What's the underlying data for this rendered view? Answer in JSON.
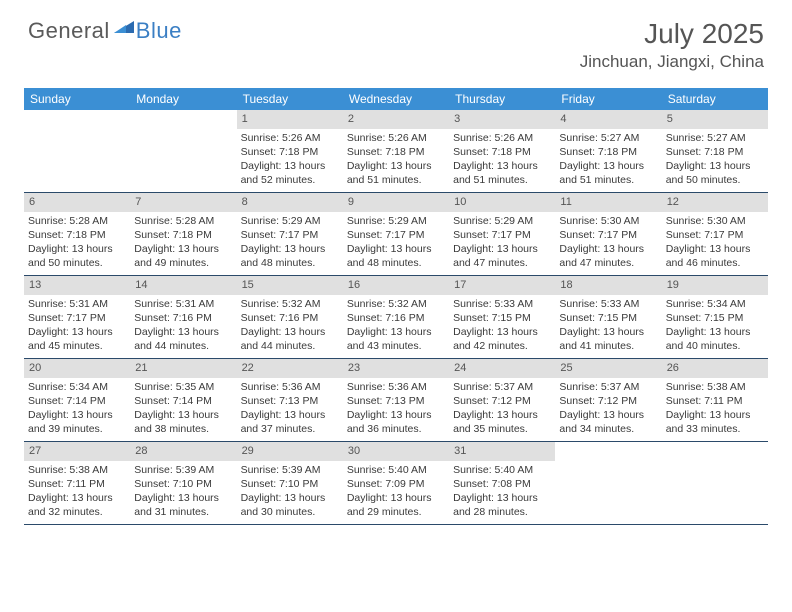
{
  "logo": {
    "text1": "General",
    "text2": "Blue"
  },
  "title": "July 2025",
  "location": "Jinchuan, Jiangxi, China",
  "colors": {
    "header_bg": "#3b8fd4",
    "header_text": "#ffffff",
    "daynum_bg": "#e0e0e0",
    "daynum_text": "#555555",
    "text": "#3a3a3a",
    "week_border": "#2b4a6a",
    "logo_gray": "#5a5a5a",
    "logo_blue": "#3b7fc4"
  },
  "day_names": [
    "Sunday",
    "Monday",
    "Tuesday",
    "Wednesday",
    "Thursday",
    "Friday",
    "Saturday"
  ],
  "weeks": [
    [
      {
        "n": "",
        "empty": true
      },
      {
        "n": "",
        "empty": true
      },
      {
        "n": "1",
        "sunrise": "Sunrise: 5:26 AM",
        "sunset": "Sunset: 7:18 PM",
        "d1": "Daylight: 13 hours",
        "d2": "and 52 minutes."
      },
      {
        "n": "2",
        "sunrise": "Sunrise: 5:26 AM",
        "sunset": "Sunset: 7:18 PM",
        "d1": "Daylight: 13 hours",
        "d2": "and 51 minutes."
      },
      {
        "n": "3",
        "sunrise": "Sunrise: 5:26 AM",
        "sunset": "Sunset: 7:18 PM",
        "d1": "Daylight: 13 hours",
        "d2": "and 51 minutes."
      },
      {
        "n": "4",
        "sunrise": "Sunrise: 5:27 AM",
        "sunset": "Sunset: 7:18 PM",
        "d1": "Daylight: 13 hours",
        "d2": "and 51 minutes."
      },
      {
        "n": "5",
        "sunrise": "Sunrise: 5:27 AM",
        "sunset": "Sunset: 7:18 PM",
        "d1": "Daylight: 13 hours",
        "d2": "and 50 minutes."
      }
    ],
    [
      {
        "n": "6",
        "sunrise": "Sunrise: 5:28 AM",
        "sunset": "Sunset: 7:18 PM",
        "d1": "Daylight: 13 hours",
        "d2": "and 50 minutes."
      },
      {
        "n": "7",
        "sunrise": "Sunrise: 5:28 AM",
        "sunset": "Sunset: 7:18 PM",
        "d1": "Daylight: 13 hours",
        "d2": "and 49 minutes."
      },
      {
        "n": "8",
        "sunrise": "Sunrise: 5:29 AM",
        "sunset": "Sunset: 7:17 PM",
        "d1": "Daylight: 13 hours",
        "d2": "and 48 minutes."
      },
      {
        "n": "9",
        "sunrise": "Sunrise: 5:29 AM",
        "sunset": "Sunset: 7:17 PM",
        "d1": "Daylight: 13 hours",
        "d2": "and 48 minutes."
      },
      {
        "n": "10",
        "sunrise": "Sunrise: 5:29 AM",
        "sunset": "Sunset: 7:17 PM",
        "d1": "Daylight: 13 hours",
        "d2": "and 47 minutes."
      },
      {
        "n": "11",
        "sunrise": "Sunrise: 5:30 AM",
        "sunset": "Sunset: 7:17 PM",
        "d1": "Daylight: 13 hours",
        "d2": "and 47 minutes."
      },
      {
        "n": "12",
        "sunrise": "Sunrise: 5:30 AM",
        "sunset": "Sunset: 7:17 PM",
        "d1": "Daylight: 13 hours",
        "d2": "and 46 minutes."
      }
    ],
    [
      {
        "n": "13",
        "sunrise": "Sunrise: 5:31 AM",
        "sunset": "Sunset: 7:17 PM",
        "d1": "Daylight: 13 hours",
        "d2": "and 45 minutes."
      },
      {
        "n": "14",
        "sunrise": "Sunrise: 5:31 AM",
        "sunset": "Sunset: 7:16 PM",
        "d1": "Daylight: 13 hours",
        "d2": "and 44 minutes."
      },
      {
        "n": "15",
        "sunrise": "Sunrise: 5:32 AM",
        "sunset": "Sunset: 7:16 PM",
        "d1": "Daylight: 13 hours",
        "d2": "and 44 minutes."
      },
      {
        "n": "16",
        "sunrise": "Sunrise: 5:32 AM",
        "sunset": "Sunset: 7:16 PM",
        "d1": "Daylight: 13 hours",
        "d2": "and 43 minutes."
      },
      {
        "n": "17",
        "sunrise": "Sunrise: 5:33 AM",
        "sunset": "Sunset: 7:15 PM",
        "d1": "Daylight: 13 hours",
        "d2": "and 42 minutes."
      },
      {
        "n": "18",
        "sunrise": "Sunrise: 5:33 AM",
        "sunset": "Sunset: 7:15 PM",
        "d1": "Daylight: 13 hours",
        "d2": "and 41 minutes."
      },
      {
        "n": "19",
        "sunrise": "Sunrise: 5:34 AM",
        "sunset": "Sunset: 7:15 PM",
        "d1": "Daylight: 13 hours",
        "d2": "and 40 minutes."
      }
    ],
    [
      {
        "n": "20",
        "sunrise": "Sunrise: 5:34 AM",
        "sunset": "Sunset: 7:14 PM",
        "d1": "Daylight: 13 hours",
        "d2": "and 39 minutes."
      },
      {
        "n": "21",
        "sunrise": "Sunrise: 5:35 AM",
        "sunset": "Sunset: 7:14 PM",
        "d1": "Daylight: 13 hours",
        "d2": "and 38 minutes."
      },
      {
        "n": "22",
        "sunrise": "Sunrise: 5:36 AM",
        "sunset": "Sunset: 7:13 PM",
        "d1": "Daylight: 13 hours",
        "d2": "and 37 minutes."
      },
      {
        "n": "23",
        "sunrise": "Sunrise: 5:36 AM",
        "sunset": "Sunset: 7:13 PM",
        "d1": "Daylight: 13 hours",
        "d2": "and 36 minutes."
      },
      {
        "n": "24",
        "sunrise": "Sunrise: 5:37 AM",
        "sunset": "Sunset: 7:12 PM",
        "d1": "Daylight: 13 hours",
        "d2": "and 35 minutes."
      },
      {
        "n": "25",
        "sunrise": "Sunrise: 5:37 AM",
        "sunset": "Sunset: 7:12 PM",
        "d1": "Daylight: 13 hours",
        "d2": "and 34 minutes."
      },
      {
        "n": "26",
        "sunrise": "Sunrise: 5:38 AM",
        "sunset": "Sunset: 7:11 PM",
        "d1": "Daylight: 13 hours",
        "d2": "and 33 minutes."
      }
    ],
    [
      {
        "n": "27",
        "sunrise": "Sunrise: 5:38 AM",
        "sunset": "Sunset: 7:11 PM",
        "d1": "Daylight: 13 hours",
        "d2": "and 32 minutes."
      },
      {
        "n": "28",
        "sunrise": "Sunrise: 5:39 AM",
        "sunset": "Sunset: 7:10 PM",
        "d1": "Daylight: 13 hours",
        "d2": "and 31 minutes."
      },
      {
        "n": "29",
        "sunrise": "Sunrise: 5:39 AM",
        "sunset": "Sunset: 7:10 PM",
        "d1": "Daylight: 13 hours",
        "d2": "and 30 minutes."
      },
      {
        "n": "30",
        "sunrise": "Sunrise: 5:40 AM",
        "sunset": "Sunset: 7:09 PM",
        "d1": "Daylight: 13 hours",
        "d2": "and 29 minutes."
      },
      {
        "n": "31",
        "sunrise": "Sunrise: 5:40 AM",
        "sunset": "Sunset: 7:08 PM",
        "d1": "Daylight: 13 hours",
        "d2": "and 28 minutes."
      },
      {
        "n": "",
        "empty": true
      },
      {
        "n": "",
        "empty": true
      }
    ]
  ]
}
